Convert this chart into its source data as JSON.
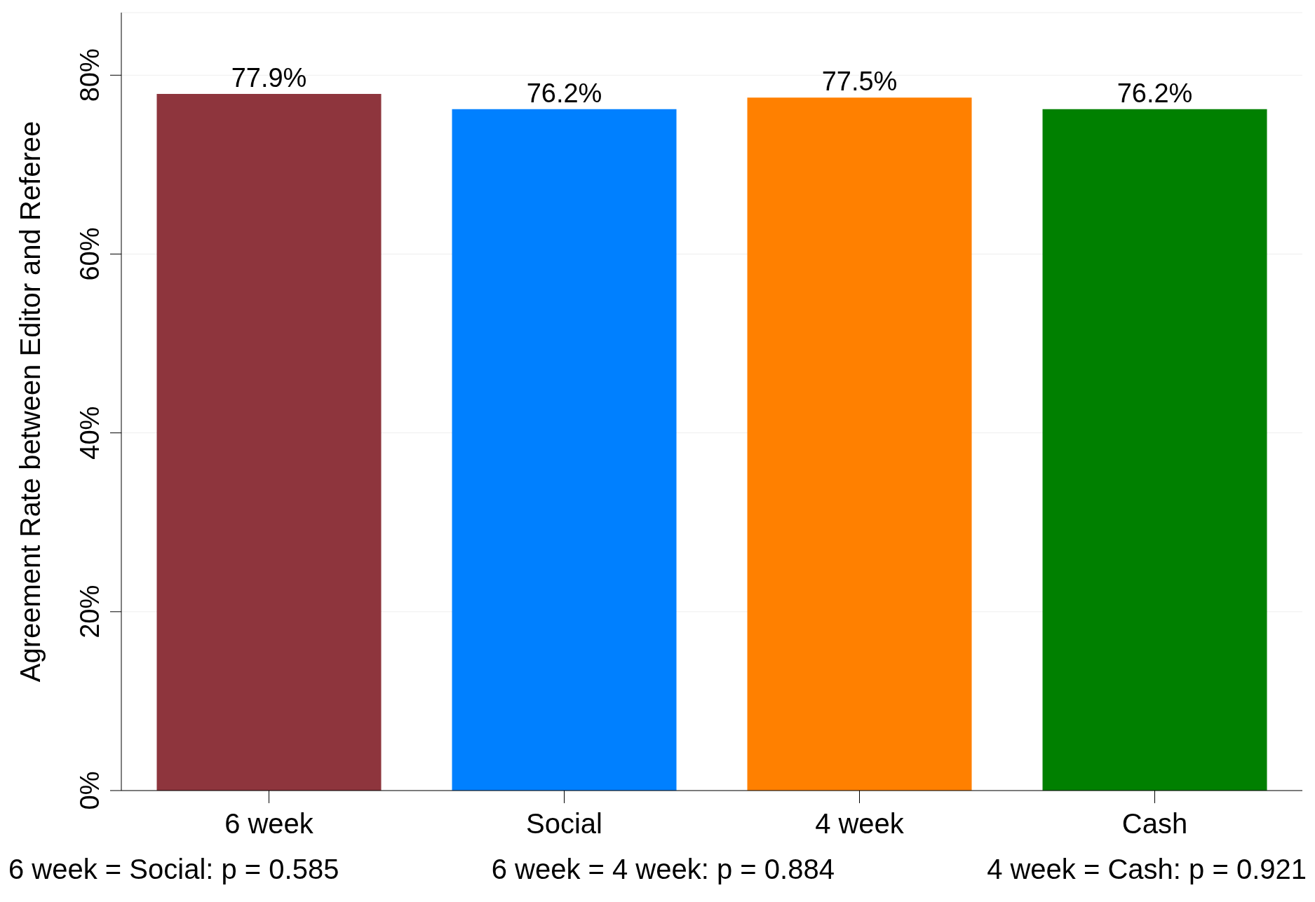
{
  "chart_data": {
    "type": "bar",
    "ylabel": "Agreement Rate between Editor and Referee",
    "categories": [
      "6 week",
      "Social",
      "4 week",
      "Cash"
    ],
    "values": [
      77.9,
      76.2,
      77.5,
      76.2
    ],
    "colors": [
      "#8e353d",
      "#0080ff",
      "#ff8000",
      "#008000"
    ],
    "value_labels": [
      "77.9%",
      "76.2%",
      "77.5%",
      "76.2%"
    ],
    "ylim": [
      0,
      87
    ],
    "yticks": [
      {
        "value": 0,
        "label": "0%"
      },
      {
        "value": 20,
        "label": "20%"
      },
      {
        "value": 40,
        "label": "40%"
      },
      {
        "value": 60,
        "label": "60%"
      },
      {
        "value": 80,
        "label": "80%"
      }
    ],
    "grid": "y",
    "annotations": [
      "6 week = Social: p = 0.585",
      "6 week = 4 week: p = 0.884",
      "4 week = Cash: p = 0.921"
    ]
  }
}
